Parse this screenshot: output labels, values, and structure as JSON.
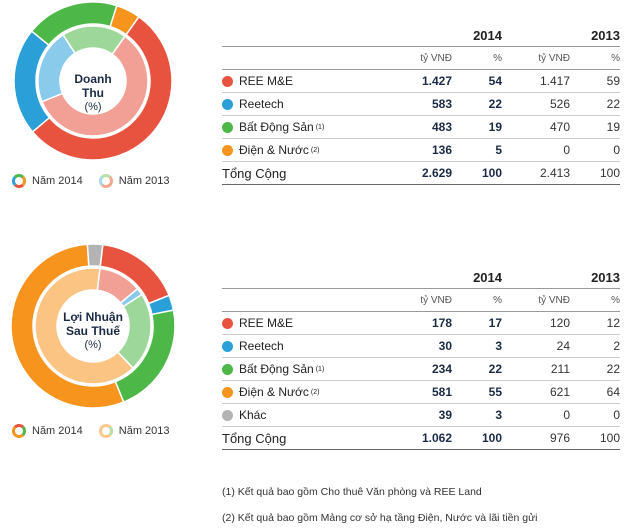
{
  "colors": {
    "ree_me": "#e8533f",
    "reetech": "#2a9fd8",
    "bds": "#4db848",
    "dien_nuoc": "#f7941d",
    "khac": "#b3b3b3"
  },
  "legend": {
    "y2014": "Năm 2014",
    "y2013": "Năm 2013"
  },
  "chart1": {
    "title": "Doanh Thu",
    "unit": "(%)",
    "years": [
      "2014",
      "2013"
    ],
    "col_units": [
      "tỷ VNĐ",
      "%",
      "tỷ VNĐ",
      "%"
    ],
    "rows": [
      {
        "name": "REE M&E",
        "sup": "",
        "v2014": "1.427",
        "p2014": "54",
        "v2013": "1.417",
        "p2013": "59",
        "color": "#e8533f"
      },
      {
        "name": "Reetech",
        "sup": "",
        "v2014": "583",
        "p2014": "22",
        "v2013": "526",
        "p2013": "22",
        "color": "#2a9fd8"
      },
      {
        "name": "Bất Động Sản",
        "sup": "(1)",
        "v2014": "483",
        "p2014": "19",
        "v2013": "470",
        "p2013": "19",
        "color": "#4db848"
      },
      {
        "name": "Điện & Nước",
        "sup": "(2)",
        "v2014": "136",
        "p2014": "5",
        "v2013": "0",
        "p2013": "0",
        "color": "#f7941d"
      }
    ],
    "total": {
      "name": "Tổng Cộng",
      "v2014": "2.629",
      "p2014": "100",
      "v2013": "2.413",
      "p2013": "100"
    }
  },
  "chart2": {
    "title_line1": "Lợi Nhuận",
    "title_line2": "Sau Thuế",
    "unit": "(%)",
    "years": [
      "2014",
      "2013"
    ],
    "col_units": [
      "tỷ VNĐ",
      "%",
      "tỷ VNĐ",
      "%"
    ],
    "rows": [
      {
        "name": "REE M&E",
        "sup": "",
        "v2014": "178",
        "p2014": "17",
        "v2013": "120",
        "p2013": "12",
        "color": "#e8533f"
      },
      {
        "name": "Reetech",
        "sup": "",
        "v2014": "30",
        "p2014": "3",
        "v2013": "24",
        "p2013": "2",
        "color": "#2a9fd8"
      },
      {
        "name": "Bất Động Sản",
        "sup": "(1)",
        "v2014": "234",
        "p2014": "22",
        "v2013": "211",
        "p2013": "22",
        "color": "#4db848"
      },
      {
        "name": "Điện & Nước",
        "sup": "(2)",
        "v2014": "581",
        "p2014": "55",
        "v2013": "621",
        "p2013": "64",
        "color": "#f7941d"
      },
      {
        "name": "Khác",
        "sup": "",
        "v2014": "39",
        "p2014": "3",
        "v2013": "0",
        "p2013": "0",
        "color": "#b3b3b3"
      }
    ],
    "total": {
      "name": "Tổng Cộng",
      "v2014": "1.062",
      "p2014": "100",
      "v2013": "976",
      "p2013": "100"
    }
  },
  "footnotes": [
    "(1) Kết quả bao gồm Cho thuê Văn phòng và REE Land",
    "(2) Kết quả bao gồm Mảng cơ sở hạ tầng Điện, Nước và lãi tiền gửi"
  ],
  "chart_data": [
    {
      "type": "pie",
      "title": "Doanh Thu",
      "unit": "(%)",
      "categories": [
        "REE M&E",
        "Reetech",
        "Bất Động Sản",
        "Điện & Nước"
      ],
      "series": [
        {
          "name": "Năm 2014",
          "values": [
            54,
            22,
            19,
            5
          ]
        },
        {
          "name": "Năm 2013",
          "values": [
            59,
            22,
            19,
            0
          ]
        }
      ],
      "colors": [
        "#e8533f",
        "#2a9fd8",
        "#4db848",
        "#f7941d"
      ]
    },
    {
      "type": "pie",
      "title": "Lợi Nhuận Sau Thuế",
      "unit": "(%)",
      "categories": [
        "REE M&E",
        "Reetech",
        "Bất Động Sản",
        "Điện & Nước",
        "Khác"
      ],
      "series": [
        {
          "name": "Năm 2014",
          "values": [
            17,
            3,
            22,
            55,
            3
          ]
        },
        {
          "name": "Năm 2013",
          "values": [
            12,
            2,
            22,
            64,
            0
          ]
        }
      ],
      "colors": [
        "#e8533f",
        "#2a9fd8",
        "#4db848",
        "#f7941d",
        "#b3b3b3"
      ]
    }
  ]
}
